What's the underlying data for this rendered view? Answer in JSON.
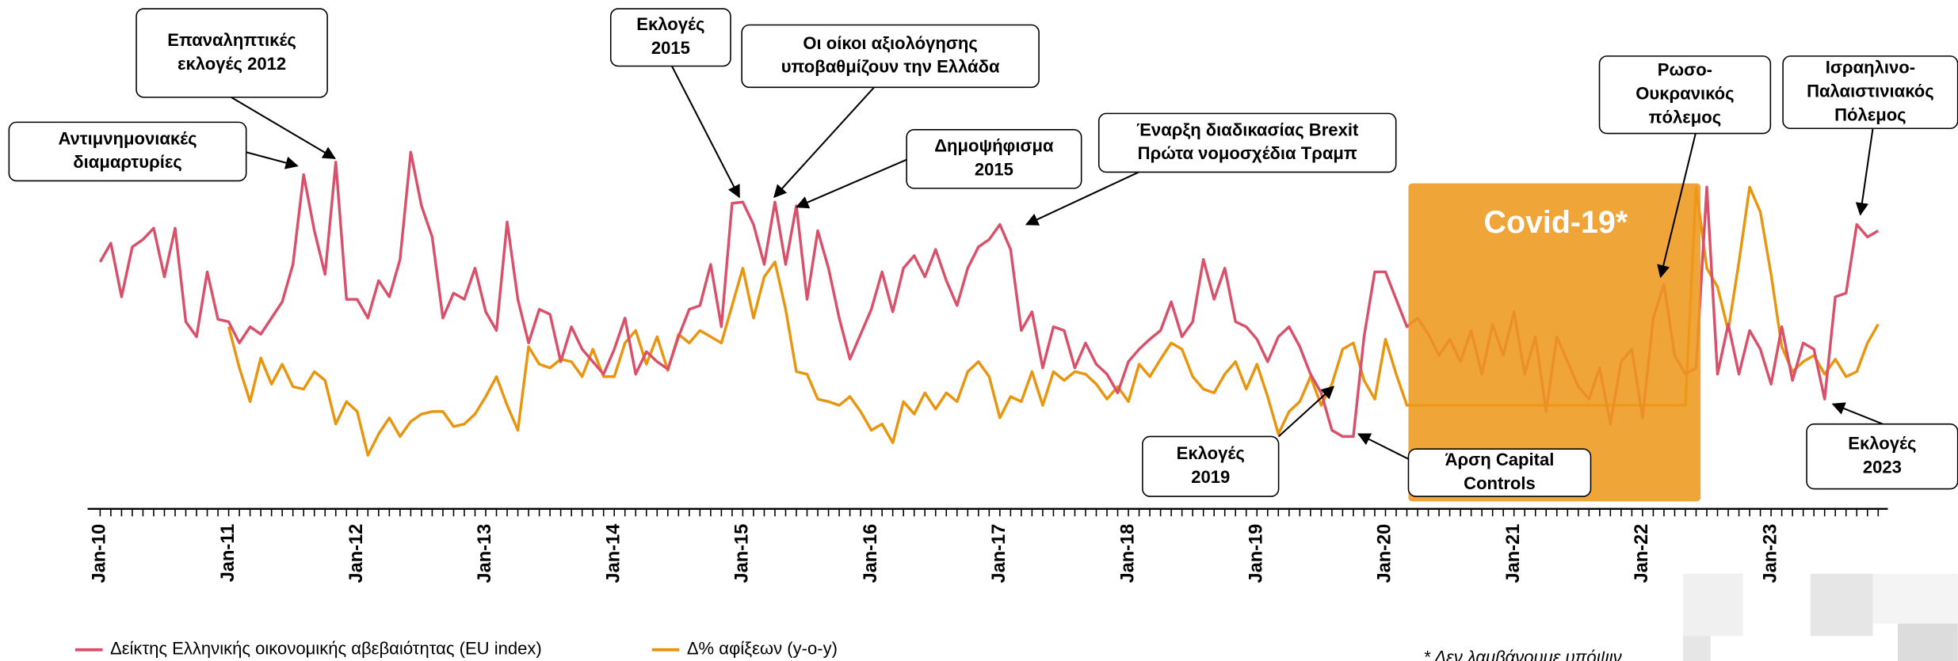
{
  "chart_data": {
    "type": "line",
    "categories": [
      "Jan-10",
      null,
      null,
      null,
      null,
      null,
      null,
      null,
      null,
      null,
      null,
      null,
      "Jan-11",
      null,
      null,
      null,
      null,
      null,
      null,
      null,
      null,
      null,
      null,
      null,
      "Jan-12",
      null,
      null,
      null,
      null,
      null,
      null,
      null,
      null,
      null,
      null,
      null,
      "Jan-13",
      null,
      null,
      null,
      null,
      null,
      null,
      null,
      null,
      null,
      null,
      null,
      "Jan-14",
      null,
      null,
      null,
      null,
      null,
      null,
      null,
      null,
      null,
      null,
      null,
      "Jan-15",
      null,
      null,
      null,
      null,
      null,
      null,
      null,
      null,
      null,
      null,
      null,
      "Jan-16",
      null,
      null,
      null,
      null,
      null,
      null,
      null,
      null,
      null,
      null,
      null,
      "Jan-17",
      null,
      null,
      null,
      null,
      null,
      null,
      null,
      null,
      null,
      null,
      null,
      "Jan-18",
      null,
      null,
      null,
      null,
      null,
      null,
      null,
      null,
      null,
      null,
      null,
      "Jan-19",
      null,
      null,
      null,
      null,
      null,
      null,
      null,
      null,
      null,
      null,
      null,
      "Jan-20",
      null,
      null,
      null,
      null,
      null,
      null,
      null,
      null,
      null,
      null,
      null,
      "Jan-21",
      null,
      null,
      null,
      null,
      null,
      null,
      null,
      null,
      null,
      null,
      null,
      "Jan-22",
      null,
      null,
      null,
      null,
      null,
      null,
      null,
      null,
      null,
      null,
      null,
      "Jan-23",
      null,
      null,
      null,
      null,
      null,
      null,
      null,
      null,
      null,
      null
    ],
    "ylim": [
      0,
      310
    ],
    "series": [
      {
        "name": "Δείκτης Ελληνικής οικονομικής αβεβαιότητας (EU index)",
        "color": "#d9506b",
        "values": [
          198,
          213,
          170,
          210,
          216,
          225,
          186,
          225,
          150,
          138,
          190,
          152,
          150,
          133,
          146,
          140,
          153,
          166,
          196,
          268,
          223,
          188,
          278,
          168,
          168,
          153,
          183,
          170,
          200,
          286,
          243,
          218,
          153,
          173,
          168,
          193,
          158,
          143,
          230,
          168,
          133,
          160,
          156,
          118,
          146,
          128,
          118,
          108,
          128,
          153,
          108,
          126,
          118,
          112,
          138,
          160,
          163,
          196,
          146,
          245,
          246,
          228,
          196,
          246,
          196,
          243,
          168,
          223,
          193,
          153,
          120,
          140,
          160,
          190,
          158,
          193,
          203,
          186,
          208,
          183,
          163,
          193,
          210,
          216,
          228,
          208,
          143,
          158,
          113,
          146,
          143,
          113,
          133,
          116,
          108,
          93,
          118,
          128,
          136,
          143,
          166,
          138,
          150,
          200,
          168,
          193,
          150,
          146,
          136,
          118,
          138,
          146,
          130,
          108,
          93,
          63,
          58,
          58,
          138,
          190,
          190,
          168,
          146,
          153,
          140,
          123,
          136,
          118,
          143,
          108,
          148,
          123,
          158,
          108,
          138,
          78,
          138,
          118,
          98,
          88,
          113,
          68,
          118,
          128,
          73,
          153,
          180,
          123,
          108,
          113,
          258,
          108,
          148,
          108,
          143,
          128,
          100,
          146,
          103,
          133,
          128,
          88,
          170,
          173,
          228,
          218,
          223
        ]
      },
      {
        "name": "Δ% αφίξεων (y-o-y)",
        "color": "#e8950f",
        "values": [
          null,
          null,
          null,
          null,
          null,
          null,
          null,
          null,
          null,
          null,
          null,
          null,
          146,
          113,
          86,
          121,
          100,
          116,
          98,
          96,
          110,
          103,
          68,
          86,
          78,
          43,
          60,
          73,
          58,
          70,
          76,
          78,
          78,
          66,
          68,
          76,
          90,
          106,
          83,
          63,
          130,
          116,
          113,
          120,
          118,
          106,
          128,
          106,
          106,
          133,
          143,
          116,
          138,
          111,
          140,
          133,
          143,
          138,
          133,
          163,
          193,
          153,
          186,
          198,
          160,
          110,
          108,
          88,
          86,
          83,
          90,
          78,
          63,
          68,
          53,
          86,
          76,
          93,
          80,
          93,
          86,
          110,
          118,
          106,
          73,
          90,
          86,
          110,
          83,
          110,
          103,
          110,
          108,
          100,
          88,
          98,
          86,
          116,
          106,
          120,
          133,
          128,
          106,
          96,
          93,
          108,
          118,
          96,
          116,
          90,
          60,
          78,
          86,
          106,
          83,
          100,
          128,
          133,
          103,
          88,
          136,
          108,
          83,
          83,
          83,
          83,
          83,
          83,
          83,
          83,
          83,
          83,
          83,
          83,
          83,
          83,
          83,
          83,
          83,
          83,
          83,
          83,
          83,
          83,
          83,
          83,
          83,
          83,
          83,
          258,
          193,
          178,
          143,
          198,
          258,
          238,
          188,
          130,
          110,
          118,
          123,
          108,
          120,
          106,
          110,
          133,
          148
        ]
      }
    ],
    "annotations": [
      {
        "text": [
          "Αντιμνημονιακές",
          "διαμαρτυρίες"
        ]
      },
      {
        "text": [
          "Επαναληπτικές",
          "εκλογές 2012"
        ]
      },
      {
        "text": [
          "Εκλογές",
          "2015"
        ]
      },
      {
        "text": [
          "Οι οίκοι αξιολόγησης",
          "υποβαθμίζουν την Ελλάδα"
        ]
      },
      {
        "text": [
          "Δημοψήφισμα",
          "2015"
        ]
      },
      {
        "text": [
          "Έναρξη διαδικασίας Brexit",
          "Πρώτα νομοσχέδια Τραμπ"
        ]
      },
      {
        "text": [
          "Ρωσο-",
          "Ουκρανικός",
          "πόλεμος"
        ]
      },
      {
        "text": [
          "Ισραηλινο-",
          "Παλαιστινιακός",
          "Πόλεμος"
        ]
      },
      {
        "text": [
          "Εκλογές",
          "2019"
        ]
      },
      {
        "text": [
          "Άρση Capital",
          "Controls"
        ]
      },
      {
        "text": [
          "Εκλογές",
          "2023"
        ]
      }
    ],
    "shaded_label": "Covid-19*",
    "footnote": "* Δεν λαμβάνουμε υπόψιν"
  }
}
